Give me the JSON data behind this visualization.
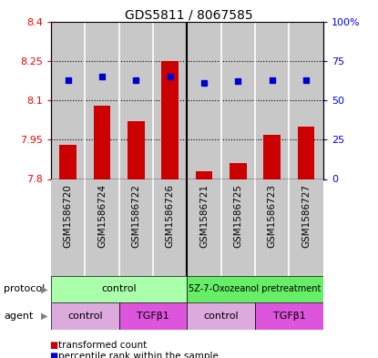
{
  "title": "GDS5811 / 8067585",
  "samples": [
    "GSM1586720",
    "GSM1586724",
    "GSM1586722",
    "GSM1586726",
    "GSM1586721",
    "GSM1586725",
    "GSM1586723",
    "GSM1586727"
  ],
  "transformed_counts": [
    7.93,
    8.08,
    8.02,
    8.25,
    7.83,
    7.86,
    7.97,
    8.0
  ],
  "percentile_ranks": [
    63,
    65,
    63,
    65,
    61,
    62,
    63,
    63
  ],
  "ylim_left": [
    7.8,
    8.4
  ],
  "ylim_right": [
    0,
    100
  ],
  "yticks_left": [
    7.8,
    7.95,
    8.1,
    8.25,
    8.4
  ],
  "yticks_right": [
    0,
    25,
    50,
    75,
    100
  ],
  "ytick_labels_left": [
    "7.8",
    "7.95",
    "8.1",
    "8.25",
    "8.4"
  ],
  "ytick_labels_right": [
    "0",
    "25",
    "50",
    "75",
    "100%"
  ],
  "hlines": [
    7.95,
    8.1,
    8.25
  ],
  "protocol_labels": [
    "control",
    "5Z-7-Oxozeanol pretreatment"
  ],
  "protocol_colors": [
    "#aaffaa",
    "#66dd66"
  ],
  "agent_labels": [
    "control",
    "TGFβ1",
    "control",
    "TGFβ1"
  ],
  "agent_bg_colors": [
    "#ddaadd",
    "#dd55dd",
    "#ddaadd",
    "#dd55dd"
  ],
  "bar_color": "#cc0000",
  "dot_color": "#0000cc",
  "bar_bottom": 7.8,
  "gray_col": "#c8c8c8",
  "white_sep": "#ffffff",
  "legend_items": [
    {
      "color": "#cc0000",
      "label": "transformed count"
    },
    {
      "color": "#0000cc",
      "label": "percentile rank within the sample"
    }
  ]
}
